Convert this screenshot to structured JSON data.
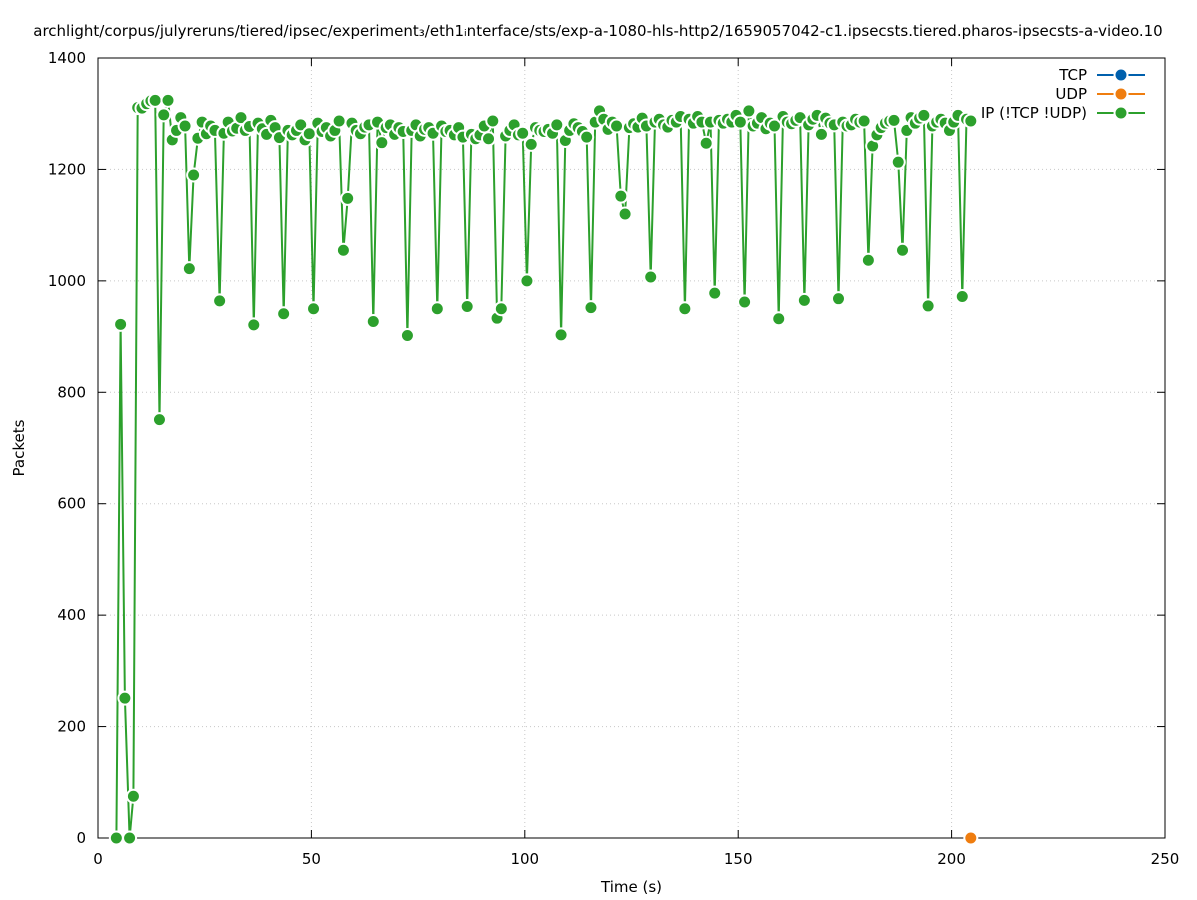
{
  "chart_data": {
    "type": "line",
    "title": "archlight/corpus/julyreruns/tiered/ipsec/experiment₃/eth1ᵢnterface/sts/exp-a-1080-hls-http2/1659057042-c1.ipsecsts.tiered.pharos-ipsecsts-a-video.10",
    "xlabel": "Time (s)",
    "ylabel": "Packets",
    "xlim": [
      0,
      250
    ],
    "ylim": [
      0,
      1400
    ],
    "x_ticks": [
      0,
      50,
      100,
      150,
      200,
      250
    ],
    "y_ticks": [
      0,
      200,
      400,
      600,
      800,
      1000,
      1200,
      1400
    ],
    "grid": true,
    "legend_position": "top-right",
    "colors": {
      "tcp": "#0060ad",
      "udp": "#ef7d0f",
      "ip": "#2ca02c",
      "grid": "#c8c8c8",
      "axis": "#000000"
    },
    "series": [
      {
        "name": "TCP",
        "color": "#0060ad",
        "points": []
      },
      {
        "name": "UDP",
        "color": "#ef7d0f",
        "points": [
          [
            204.5,
            0
          ]
        ]
      },
      {
        "name": "IP (!TCP  !UDP)",
        "color": "#2ca02c",
        "points": [
          [
            4.3,
            0
          ],
          [
            5.3,
            922
          ],
          [
            6.3,
            251
          ],
          [
            7.4,
            0
          ],
          [
            8.3,
            75
          ],
          [
            9.3,
            1311
          ],
          [
            10.3,
            1310
          ],
          [
            11.4,
            1318
          ],
          [
            12.4,
            1323
          ],
          [
            13.4,
            1324
          ],
          [
            14.4,
            751
          ],
          [
            15.4,
            1298
          ],
          [
            16.4,
            1324
          ],
          [
            17.4,
            1253
          ],
          [
            18.4,
            1270
          ],
          [
            19.4,
            1293
          ],
          [
            20.4,
            1278
          ],
          [
            21.4,
            1022
          ],
          [
            22.4,
            1190
          ],
          [
            23.4,
            1256
          ],
          [
            24.4,
            1285
          ],
          [
            25.4,
            1264
          ],
          [
            26.4,
            1278
          ],
          [
            27.4,
            1270
          ],
          [
            28.5,
            964
          ],
          [
            29.5,
            1265
          ],
          [
            30.5,
            1285
          ],
          [
            31.5,
            1269
          ],
          [
            32.5,
            1274
          ],
          [
            33.5,
            1293
          ],
          [
            34.5,
            1270
          ],
          [
            35.5,
            1277
          ],
          [
            36.5,
            921
          ],
          [
            37.5,
            1283
          ],
          [
            38.5,
            1273
          ],
          [
            39.5,
            1263
          ],
          [
            40.5,
            1288
          ],
          [
            41.5,
            1275
          ],
          [
            42.5,
            1257
          ],
          [
            43.5,
            941
          ],
          [
            44.5,
            1270
          ],
          [
            45.5,
            1262
          ],
          [
            46.5,
            1270
          ],
          [
            47.5,
            1280
          ],
          [
            48.5,
            1253
          ],
          [
            49.5,
            1264
          ],
          [
            50.5,
            950
          ],
          [
            51.5,
            1283
          ],
          [
            52.5,
            1268
          ],
          [
            53.5,
            1275
          ],
          [
            54.5,
            1260
          ],
          [
            55.5,
            1270
          ],
          [
            56.5,
            1287
          ],
          [
            57.5,
            1055
          ],
          [
            58.5,
            1148
          ],
          [
            59.5,
            1283
          ],
          [
            60.5,
            1270
          ],
          [
            61.5,
            1264
          ],
          [
            62.5,
            1276
          ],
          [
            63.5,
            1280
          ],
          [
            64.5,
            927
          ],
          [
            65.5,
            1285
          ],
          [
            66.5,
            1248
          ],
          [
            67.5,
            1275
          ],
          [
            68.5,
            1280
          ],
          [
            69.5,
            1263
          ],
          [
            70.5,
            1275
          ],
          [
            71.5,
            1268
          ],
          [
            72.5,
            902
          ],
          [
            73.5,
            1270
          ],
          [
            74.5,
            1280
          ],
          [
            75.5,
            1260
          ],
          [
            76.5,
            1272
          ],
          [
            77.5,
            1275
          ],
          [
            78.5,
            1265
          ],
          [
            79.5,
            950
          ],
          [
            80.5,
            1278
          ],
          [
            81.5,
            1268
          ],
          [
            82.5,
            1270
          ],
          [
            83.5,
            1262
          ],
          [
            84.5,
            1275
          ],
          [
            85.5,
            1258
          ],
          [
            86.5,
            954
          ],
          [
            87.5,
            1263
          ],
          [
            88.5,
            1255
          ],
          [
            89.5,
            1262
          ],
          [
            90.5,
            1278
          ],
          [
            91.5,
            1255
          ],
          [
            92.5,
            1287
          ],
          [
            93.5,
            933
          ],
          [
            94.5,
            950
          ],
          [
            95.5,
            1260
          ],
          [
            96.5,
            1270
          ],
          [
            97.5,
            1280
          ],
          [
            98.5,
            1262
          ],
          [
            99.5,
            1265
          ],
          [
            100.5,
            1000
          ],
          [
            101.5,
            1245
          ],
          [
            102.5,
            1275
          ],
          [
            103.5,
            1270
          ],
          [
            104.5,
            1268
          ],
          [
            105.5,
            1272
          ],
          [
            106.5,
            1265
          ],
          [
            107.5,
            1280
          ],
          [
            108.5,
            903
          ],
          [
            109.5,
            1252
          ],
          [
            110.5,
            1270
          ],
          [
            111.5,
            1282
          ],
          [
            112.5,
            1275
          ],
          [
            113.5,
            1268
          ],
          [
            114.5,
            1258
          ],
          [
            115.5,
            952
          ],
          [
            116.5,
            1285
          ],
          [
            117.5,
            1305
          ],
          [
            118.5,
            1290
          ],
          [
            119.5,
            1272
          ],
          [
            120.5,
            1285
          ],
          [
            121.5,
            1278
          ],
          [
            122.5,
            1152
          ],
          [
            123.5,
            1120
          ],
          [
            124.5,
            1275
          ],
          [
            125.5,
            1282
          ],
          [
            126.5,
            1276
          ],
          [
            127.5,
            1292
          ],
          [
            128.5,
            1278
          ],
          [
            129.5,
            1007
          ],
          [
            130.5,
            1285
          ],
          [
            131.5,
            1290
          ],
          [
            132.5,
            1280
          ],
          [
            133.5,
            1276
          ],
          [
            134.5,
            1288
          ],
          [
            135.5,
            1285
          ],
          [
            136.5,
            1295
          ],
          [
            137.5,
            950
          ],
          [
            138.5,
            1290
          ],
          [
            139.5,
            1283
          ],
          [
            140.5,
            1295
          ],
          [
            141.5,
            1285
          ],
          [
            142.5,
            1247
          ],
          [
            143.5,
            1285
          ],
          [
            144.5,
            978
          ],
          [
            145.5,
            1288
          ],
          [
            146.5,
            1283
          ],
          [
            147.5,
            1290
          ],
          [
            148.5,
            1285
          ],
          [
            149.5,
            1297
          ],
          [
            150.5,
            1285
          ],
          [
            151.5,
            962
          ],
          [
            152.5,
            1305
          ],
          [
            153.5,
            1278
          ],
          [
            154.5,
            1283
          ],
          [
            155.5,
            1293
          ],
          [
            156.5,
            1273
          ],
          [
            157.5,
            1283
          ],
          [
            158.5,
            1278
          ],
          [
            159.5,
            932
          ],
          [
            160.5,
            1295
          ],
          [
            161.5,
            1285
          ],
          [
            162.5,
            1282
          ],
          [
            163.5,
            1288
          ],
          [
            164.5,
            1293
          ],
          [
            165.5,
            965
          ],
          [
            166.5,
            1280
          ],
          [
            167.5,
            1290
          ],
          [
            168.5,
            1297
          ],
          [
            169.5,
            1263
          ],
          [
            170.5,
            1292
          ],
          [
            171.5,
            1283
          ],
          [
            172.5,
            1280
          ],
          [
            173.5,
            968
          ],
          [
            174.5,
            1285
          ],
          [
            175.5,
            1278
          ],
          [
            176.5,
            1280
          ],
          [
            177.5,
            1290
          ],
          [
            178.5,
            1285
          ],
          [
            179.5,
            1287
          ],
          [
            180.5,
            1037
          ],
          [
            181.5,
            1242
          ],
          [
            182.5,
            1262
          ],
          [
            183.5,
            1275
          ],
          [
            184.5,
            1283
          ],
          [
            185.5,
            1287
          ],
          [
            186.5,
            1288
          ],
          [
            187.5,
            1213
          ],
          [
            188.5,
            1055
          ],
          [
            189.5,
            1270
          ],
          [
            190.5,
            1293
          ],
          [
            191.5,
            1283
          ],
          [
            192.5,
            1292
          ],
          [
            193.5,
            1297
          ],
          [
            194.5,
            955
          ],
          [
            195.5,
            1278
          ],
          [
            196.5,
            1285
          ],
          [
            197.5,
            1290
          ],
          [
            198.5,
            1283
          ],
          [
            199.5,
            1270
          ],
          [
            200.5,
            1285
          ],
          [
            201.5,
            1297
          ],
          [
            202.5,
            972
          ],
          [
            203.5,
            1290
          ],
          [
            204.5,
            1287
          ]
        ]
      }
    ]
  }
}
